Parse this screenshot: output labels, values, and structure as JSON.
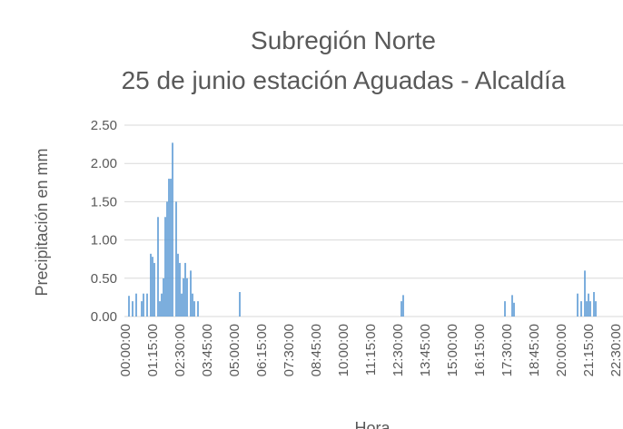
{
  "chart_data": {
    "type": "bar",
    "title": "Subregión Norte",
    "subtitle": "25 de junio estación Aguadas - Alcaldía",
    "x_label": "Hora",
    "y_label": "Precipitación en mm",
    "color": "#5b9bd5",
    "grid": true,
    "ylim": [
      0,
      2.5
    ],
    "yticks": [
      {
        "value": 0,
        "label": "0.00"
      },
      {
        "value": 0.5,
        "label": "0.50"
      },
      {
        "value": 1,
        "label": "1.00"
      },
      {
        "value": 1.5,
        "label": "1.50"
      },
      {
        "value": 2,
        "label": "2.00"
      },
      {
        "value": 2.5,
        "label": "2.50"
      }
    ],
    "categories": [
      "00:00:00",
      null,
      null,
      null,
      null,
      null,
      null,
      null,
      null,
      null,
      null,
      null,
      null,
      null,
      null,
      "01:15:00",
      null,
      null,
      null,
      null,
      null,
      null,
      null,
      null,
      null,
      null,
      null,
      null,
      null,
      null,
      "02:30:00",
      null,
      null,
      null,
      null,
      null,
      null,
      null,
      null,
      null,
      null,
      null,
      null,
      null,
      null,
      "03:45:00",
      null,
      null,
      null,
      null,
      null,
      null,
      null,
      null,
      null,
      null,
      null,
      null,
      null,
      null,
      "05:00:00",
      null,
      null,
      null,
      null,
      null,
      null,
      null,
      null,
      null,
      null,
      null,
      null,
      null,
      null,
      "06:15:00",
      null,
      null,
      null,
      null,
      null,
      null,
      null,
      null,
      null,
      null,
      null,
      null,
      null,
      null,
      "07:30:00",
      null,
      null,
      null,
      null,
      null,
      null,
      null,
      null,
      null,
      null,
      null,
      null,
      null,
      null,
      "08:45:00",
      null,
      null,
      null,
      null,
      null,
      null,
      null,
      null,
      null,
      null,
      null,
      null,
      null,
      null,
      "10:00:00",
      null,
      null,
      null,
      null,
      null,
      null,
      null,
      null,
      null,
      null,
      null,
      null,
      null,
      null,
      "11:15:00",
      null,
      null,
      null,
      null,
      null,
      null,
      null,
      null,
      null,
      null,
      null,
      null,
      null,
      null,
      "12:30:00",
      null,
      null,
      null,
      null,
      null,
      null,
      null,
      null,
      null,
      null,
      null,
      null,
      null,
      null,
      "13:45:00",
      null,
      null,
      null,
      null,
      null,
      null,
      null,
      null,
      null,
      null,
      null,
      null,
      null,
      null,
      "15:00:00",
      null,
      null,
      null,
      null,
      null,
      null,
      null,
      null,
      null,
      null,
      null,
      null,
      null,
      null,
      "16:15:00",
      null,
      null,
      null,
      null,
      null,
      null,
      null,
      null,
      null,
      null,
      null,
      null,
      null,
      null,
      "17:30:00",
      null,
      null,
      null,
      null,
      null,
      null,
      null,
      null,
      null,
      null,
      null,
      null,
      null,
      null,
      "18:45:00",
      null,
      null,
      null,
      null,
      null,
      null,
      null,
      null,
      null,
      null,
      null,
      null,
      null,
      null,
      "20:00:00",
      null,
      null,
      null,
      null,
      null,
      null,
      null,
      null,
      null,
      null,
      null,
      null,
      null,
      null,
      "21:15:00",
      null,
      null,
      null,
      null,
      null,
      null,
      null,
      null,
      null,
      null,
      null,
      null,
      null,
      null,
      "22:30:00",
      null,
      null,
      null,
      null,
      null,
      null,
      null,
      null,
      null,
      null,
      null,
      null,
      null,
      null,
      null,
      null,
      null
    ],
    "values": [
      0,
      0,
      0.27,
      0,
      0.2,
      0,
      0.3,
      0,
      0,
      0.2,
      0.3,
      0,
      0.3,
      0,
      0.82,
      0.78,
      0.7,
      0,
      1.3,
      0.2,
      0.3,
      0.5,
      1.3,
      1.5,
      1.8,
      1.8,
      2.27,
      0,
      1.5,
      0.82,
      0.7,
      0.3,
      0.5,
      0.7,
      0.5,
      0,
      0.6,
      0.3,
      0.2,
      0,
      0.2,
      0,
      0,
      0,
      0,
      0,
      0,
      0,
      0,
      0,
      0,
      0,
      0,
      0,
      0,
      0,
      0,
      0,
      0,
      0,
      0,
      0,
      0,
      0.32,
      0,
      0,
      0,
      0,
      0,
      0,
      0,
      0,
      0,
      0,
      0,
      0,
      0,
      0,
      0,
      0,
      0,
      0,
      0,
      0,
      0,
      0,
      0,
      0,
      0,
      0,
      0,
      0,
      0,
      0,
      0,
      0,
      0,
      0,
      0,
      0,
      0,
      0,
      0,
      0,
      0,
      0,
      0,
      0,
      0,
      0,
      0,
      0,
      0,
      0,
      0,
      0,
      0,
      0,
      0,
      0,
      0,
      0,
      0,
      0,
      0,
      0,
      0,
      0,
      0,
      0,
      0,
      0,
      0,
      0,
      0,
      0,
      0,
      0,
      0,
      0,
      0,
      0,
      0,
      0,
      0,
      0,
      0,
      0,
      0,
      0,
      0,
      0,
      0.2,
      0.28,
      0,
      0,
      0,
      0,
      0,
      0,
      0,
      0,
      0,
      0,
      0,
      0,
      0,
      0,
      0,
      0,
      0,
      0,
      0,
      0,
      0,
      0,
      0,
      0,
      0,
      0,
      0,
      0,
      0,
      0,
      0,
      0,
      0,
      0,
      0,
      0,
      0,
      0,
      0,
      0,
      0,
      0,
      0,
      0,
      0,
      0,
      0,
      0,
      0,
      0,
      0,
      0,
      0,
      0,
      0,
      0.2,
      0,
      0,
      0,
      0.28,
      0.18,
      0,
      0,
      0,
      0,
      0,
      0,
      0,
      0,
      0,
      0,
      0,
      0,
      0,
      0,
      0,
      0,
      0,
      0,
      0,
      0,
      0,
      0,
      0,
      0,
      0,
      0,
      0,
      0,
      0,
      0,
      0,
      0,
      0,
      0,
      0.3,
      0,
      0.2,
      0,
      0.6,
      0.2,
      0.3,
      0.2,
      0,
      0.32,
      0.2,
      0,
      0,
      0,
      0,
      0,
      0,
      0,
      0,
      0,
      0,
      0,
      0,
      0,
      0,
      0,
      0,
      0,
      0,
      0,
      0,
      0,
      0,
      0,
      0,
      0,
      0,
      0,
      0
    ]
  }
}
